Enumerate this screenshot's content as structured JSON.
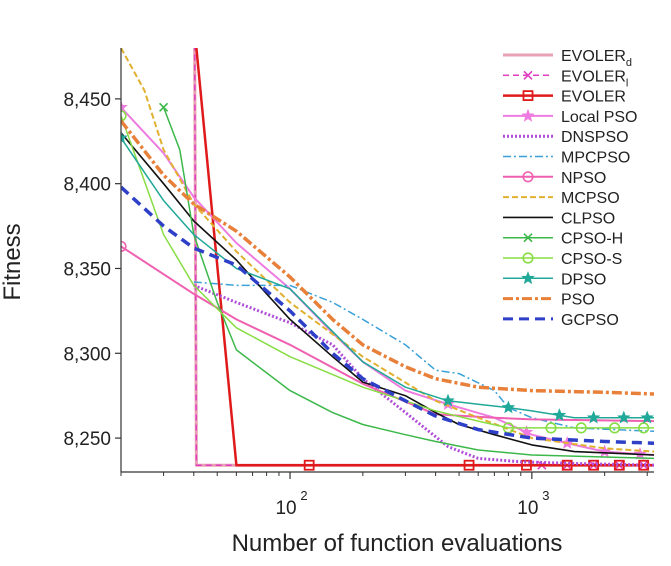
{
  "chart_data": {
    "type": "line",
    "title": "",
    "xlabel": "Number of function evaluations",
    "ylabel": "Fitness",
    "x_scale": "log",
    "xlim": [
      20,
      3200
    ],
    "ylim": [
      8230,
      8480
    ],
    "yticks": [
      8250,
      8300,
      8350,
      8400,
      8450
    ],
    "ytick_labels": [
      "8,250",
      "8,300",
      "8,350",
      "8,400",
      "8,450"
    ],
    "xticks": [
      100,
      1000
    ],
    "xtick_labels": [
      {
        "base": "10",
        "exp": "2"
      },
      {
        "base": "10",
        "exp": "3"
      }
    ],
    "grid": false,
    "legend_position": "top-right",
    "series": [
      {
        "name": "EVOLER",
        "sub": "d",
        "color": "#e8a0b4",
        "width": 3,
        "dash": "",
        "marker": "none",
        "x": [
          40,
          41,
          3200
        ],
        "y": [
          8600,
          8234,
          8234
        ]
      },
      {
        "name": "EVOLER",
        "sub": "l",
        "color": "#e040c0",
        "width": 1.5,
        "dash": "6,4",
        "marker": "x",
        "marker_x": [
          1100,
          1400,
          1800,
          2300,
          2900
        ],
        "x": [
          40,
          41,
          3200
        ],
        "y": [
          8600,
          8234,
          8234
        ]
      },
      {
        "name": "EVOLER",
        "sub": "",
        "color": "#e01a1a",
        "width": 2.5,
        "dash": "",
        "marker": "square",
        "marker_x": [
          120,
          550,
          950,
          1400,
          1800,
          2300,
          2900
        ],
        "x": [
          41,
          60,
          3200
        ],
        "y": [
          8480,
          8234,
          8234
        ]
      },
      {
        "name": "Local PSO",
        "sub": "",
        "color": "#ee7ce0",
        "width": 2,
        "dash": "",
        "marker": "star",
        "marker_x": [
          20,
          450,
          950,
          1400,
          2000,
          2800
        ],
        "x": [
          20,
          30,
          40,
          60,
          100,
          150,
          200,
          300,
          450,
          700,
          1000,
          1500,
          2000,
          3200
        ],
        "y": [
          8445,
          8418,
          8392,
          8365,
          8338,
          8312,
          8295,
          8278,
          8270,
          8262,
          8252,
          8246,
          8242,
          8240
        ]
      },
      {
        "name": "DNSPSO",
        "sub": "",
        "color": "#b04fd8",
        "width": 3,
        "dash": "2,2",
        "marker": "none",
        "x": [
          40,
          60,
          100,
          150,
          200,
          300,
          450,
          600,
          900,
          1500,
          3200
        ],
        "y": [
          8340,
          8330,
          8318,
          8305,
          8285,
          8265,
          8245,
          8238,
          8236,
          8235,
          8234
        ]
      },
      {
        "name": "MPCPSO",
        "sub": "",
        "color": "#3aa0d8",
        "width": 1.5,
        "dash": "8,3,2,3",
        "marker": "none",
        "x": [
          40,
          60,
          80,
          100,
          150,
          200,
          300,
          400,
          500,
          700,
          800,
          1000,
          1500,
          3200
        ],
        "y": [
          8342,
          8340,
          8340,
          8340,
          8330,
          8320,
          8305,
          8290,
          8288,
          8278,
          8268,
          8262,
          8256,
          8254
        ]
      },
      {
        "name": "NPSO",
        "sub": "",
        "color": "#f060b0",
        "width": 2,
        "dash": "",
        "marker": "circle",
        "marker_x": [
          20
        ],
        "x": [
          20,
          40,
          60,
          100,
          200,
          400,
          700,
          1000,
          3200
        ],
        "y": [
          8363,
          8335,
          8320,
          8305,
          8282,
          8264,
          8262,
          8261,
          8260
        ]
      },
      {
        "name": "MCPSO",
        "sub": "",
        "color": "#e0b030",
        "width": 2,
        "dash": "6,3",
        "marker": "none",
        "x": [
          20,
          25,
          30,
          40,
          60,
          100,
          200,
          400,
          600,
          1000,
          2000,
          3200
        ],
        "y": [
          8480,
          8455,
          8420,
          8388,
          8360,
          8330,
          8298,
          8272,
          8262,
          8250,
          8244,
          8242
        ]
      },
      {
        "name": "CLPSO",
        "sub": "",
        "color": "#111111",
        "width": 1.6,
        "dash": "",
        "marker": "none",
        "x": [
          20,
          30,
          40,
          60,
          80,
          100,
          150,
          200,
          300,
          400,
          500,
          700,
          1000,
          1500,
          3200
        ],
        "y": [
          8430,
          8400,
          8378,
          8355,
          8335,
          8320,
          8298,
          8283,
          8275,
          8265,
          8258,
          8252,
          8246,
          8242,
          8240
        ]
      },
      {
        "name": "CPSO-H",
        "sub": "",
        "color": "#3cb84a",
        "width": 1.5,
        "dash": "",
        "marker": "x",
        "marker_x": [
          30
        ],
        "x": [
          30,
          35,
          40,
          50,
          60,
          100,
          150,
          200,
          300,
          400,
          600,
          1000,
          3200
        ],
        "y": [
          8445,
          8420,
          8370,
          8330,
          8302,
          8278,
          8265,
          8258,
          8252,
          8248,
          8243,
          8240,
          8238
        ]
      },
      {
        "name": "CPSO-S",
        "sub": "",
        "color": "#88dd44",
        "width": 1.5,
        "dash": "",
        "marker": "circle",
        "marker_x": [
          20,
          800,
          1200,
          1600,
          2200,
          2900
        ],
        "x": [
          20,
          30,
          40,
          60,
          100,
          200,
          300,
          400,
          600,
          800,
          1000,
          3200
        ],
        "y": [
          8440,
          8370,
          8340,
          8315,
          8298,
          8280,
          8272,
          8266,
          8260,
          8256,
          8256,
          8256
        ]
      },
      {
        "name": "DPSO",
        "sub": "",
        "color": "#20a898",
        "width": 1.5,
        "dash": "",
        "marker": "star",
        "marker_x": [
          20,
          450,
          800,
          1300,
          1800,
          2400,
          3000
        ],
        "x": [
          20,
          30,
          40,
          60,
          100,
          200,
          300,
          450,
          600,
          800,
          1000,
          1500,
          3200
        ],
        "y": [
          8427,
          8390,
          8370,
          8350,
          8338,
          8295,
          8280,
          8272,
          8270,
          8268,
          8266,
          8262,
          8262
        ]
      },
      {
        "name": "PSO",
        "sub": "",
        "color": "#e8803a",
        "width": 3.5,
        "dash": "10,3,3,3",
        "marker": "none",
        "x": [
          20,
          30,
          40,
          60,
          100,
          150,
          200,
          300,
          400,
          600,
          1000,
          2000,
          3200
        ],
        "y": [
          8437,
          8405,
          8388,
          8372,
          8345,
          8320,
          8305,
          8292,
          8285,
          8280,
          8278,
          8277,
          8276
        ]
      },
      {
        "name": "GCPSO",
        "sub": "",
        "color": "#2e3fc8",
        "width": 3.5,
        "dash": "10,6",
        "marker": "none",
        "x": [
          20,
          30,
          40,
          60,
          100,
          150,
          200,
          300,
          400,
          600,
          1000,
          2000,
          3200
        ],
        "y": [
          8398,
          8375,
          8362,
          8352,
          8325,
          8300,
          8285,
          8272,
          8263,
          8255,
          8250,
          8248,
          8247
        ]
      }
    ]
  }
}
